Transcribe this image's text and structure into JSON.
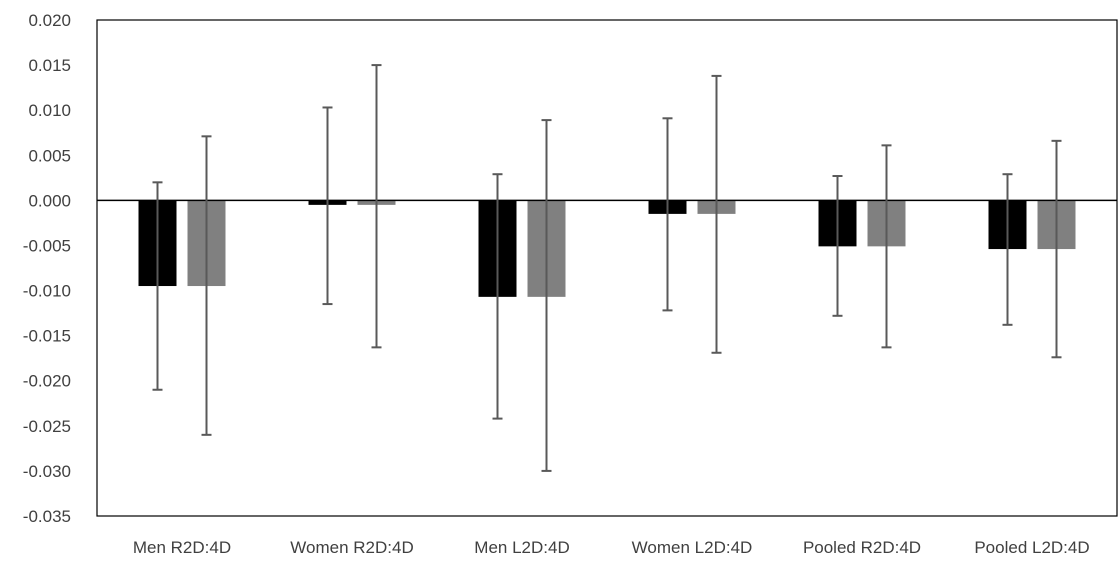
{
  "chart_data": {
    "type": "bar",
    "title": "",
    "xlabel": "",
    "ylabel": "",
    "ylim": [
      -0.035,
      0.02
    ],
    "y_ticks": [
      "0.020",
      "0.015",
      "0.010",
      "0.005",
      "0.000",
      "-0.005",
      "-0.010",
      "-0.015",
      "-0.020",
      "-0.025",
      "-0.030",
      "-0.035"
    ],
    "categories": [
      "Men R2D:4D",
      "Women R2D:4D",
      "Men L2D:4D",
      "Women L2D:4D",
      "Pooled R2D:4D",
      "Pooled L2D:4D"
    ],
    "grid": false,
    "legend": "none",
    "series": [
      {
        "color": "#000000",
        "values": [
          -0.0095,
          -0.0005,
          -0.0107,
          -0.0015,
          -0.0051,
          -0.0054
        ],
        "error_low": [
          -0.021,
          -0.0115,
          -0.0242,
          -0.0122,
          -0.0128,
          -0.0138
        ],
        "error_high": [
          0.002,
          0.0103,
          0.0029,
          0.0091,
          0.0027,
          0.0029
        ]
      },
      {
        "color": "#808080",
        "values": [
          -0.0095,
          -0.0005,
          -0.0107,
          -0.0015,
          -0.0051,
          -0.0054
        ],
        "error_low": [
          -0.026,
          -0.0163,
          -0.03,
          -0.0169,
          -0.0163,
          -0.0174
        ],
        "error_high": [
          0.0071,
          0.015,
          0.0089,
          0.0138,
          0.0061,
          0.0066
        ]
      }
    ],
    "error_bar_color": "#595959"
  }
}
